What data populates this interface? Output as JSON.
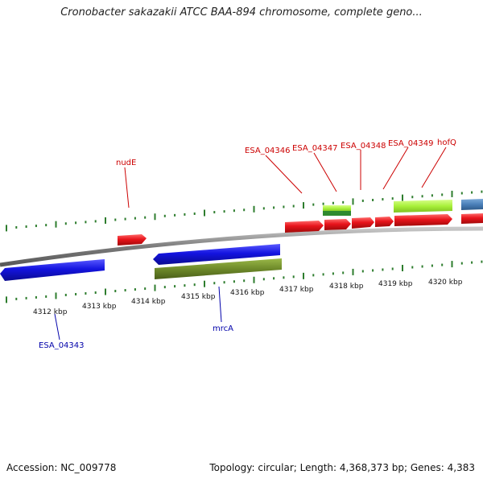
{
  "title": "Cronobacter sakazakii ATCC BAA-894 chromosome, complete geno...",
  "footer": {
    "accession": "Accession: NC_009778",
    "stats": "Topology: circular; Length: 4,368,373 bp; Genes: 4,383"
  },
  "colors": {
    "forward_gene": "#e8141b",
    "reverse_gene": "#1414e0",
    "cds_green": "#6e8a2a",
    "light_green": "#a8f03a",
    "dark_green": "#2f8a2f",
    "steel_blue": "#4a7fb8",
    "backbone": "#8a8a8a",
    "tick": "#2e7d2e",
    "forward_label": "#cc0000",
    "reverse_label": "#0000aa"
  },
  "scale_ticks": [
    "4312 kbp",
    "4313 kbp",
    "4314 kbp",
    "4315 kbp",
    "4316 kbp",
    "4317 kbp",
    "4318 kbp",
    "4319 kbp",
    "4320 kbp"
  ],
  "forward_labels": [
    "nudE",
    "ESA_04346",
    "ESA_04347",
    "ESA_04348",
    "ESA_04349",
    "hofQ"
  ],
  "reverse_labels": [
    "ESA_04343",
    "mrcA"
  ]
}
